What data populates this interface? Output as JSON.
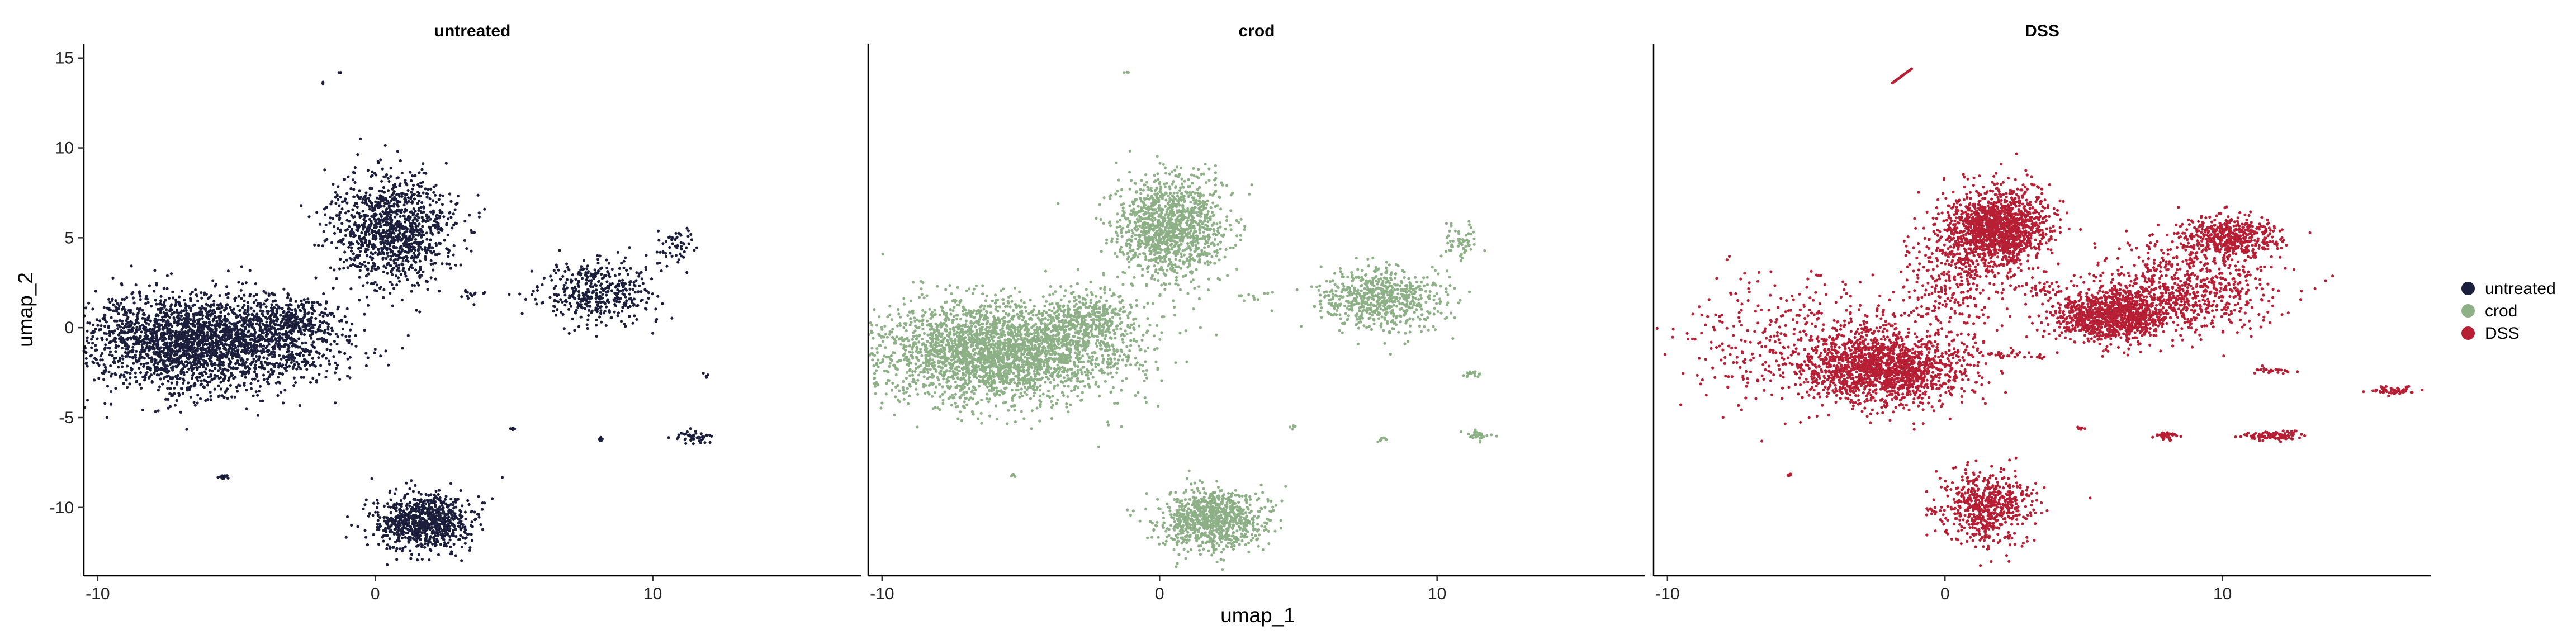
{
  "chart_data": {
    "type": "scatter",
    "xlabel": "umap_1",
    "ylabel": "umap_2",
    "xlim": [
      -10.5,
      17.5
    ],
    "ylim": [
      -13.8,
      15.8
    ],
    "x_ticks": [
      -10,
      0,
      10
    ],
    "y_ticks": [
      -10,
      -5,
      0,
      5,
      10,
      15
    ],
    "legend_position": "right",
    "grid": false,
    "legend": [
      {
        "name": "untreated",
        "color": "#1b1f3b"
      },
      {
        "name": "crod",
        "color": "#8db087"
      },
      {
        "name": "DSS",
        "color": "#b71f35"
      }
    ],
    "panels": [
      {
        "title": "untreated",
        "color": "#1b1f3b",
        "clusters": [
          {
            "cx": -6.2,
            "cy": -0.8,
            "sx": 2.2,
            "sy": 1.35,
            "n": 2600
          },
          {
            "cx": -3.0,
            "cy": 0.3,
            "sx": 0.9,
            "sy": 0.7,
            "n": 250
          },
          {
            "cx": 0.6,
            "cy": 5.5,
            "sx": 1.1,
            "sy": 1.5,
            "n": 1100
          },
          {
            "cx": 8.0,
            "cy": 2.0,
            "sx": 1.1,
            "sy": 0.9,
            "n": 420
          },
          {
            "cx": 10.8,
            "cy": 4.6,
            "sx": 0.35,
            "sy": 0.5,
            "n": 50
          },
          {
            "cx": 1.8,
            "cy": -10.8,
            "sx": 0.85,
            "sy": 0.8,
            "n": 800
          },
          {
            "cx": -5.5,
            "cy": -8.3,
            "sx": 0.08,
            "sy": 0.05,
            "n": 14
          },
          {
            "cx": 11.5,
            "cy": -6.1,
            "sx": 0.3,
            "sy": 0.15,
            "n": 45
          },
          {
            "cx": 8.1,
            "cy": -6.2,
            "sx": 0.08,
            "sy": 0.08,
            "n": 9
          },
          {
            "cx": 5.0,
            "cy": -5.6,
            "sx": 0.08,
            "sy": 0.05,
            "n": 6
          },
          {
            "cx": 3.4,
            "cy": 1.8,
            "sx": 0.3,
            "sy": 0.15,
            "n": 12
          },
          {
            "cx": -2.5,
            "cy": -1.9,
            "sx": 0.25,
            "sy": 0.1,
            "n": 10
          },
          {
            "cx": 11.9,
            "cy": -2.7,
            "sx": 0.05,
            "sy": 0.08,
            "n": 4
          },
          {
            "cx": -1.3,
            "cy": 14.2,
            "sx": 0.05,
            "sy": 0.05,
            "n": 3
          },
          {
            "cx": -1.9,
            "cy": 13.6,
            "sx": 0.05,
            "sy": 0.05,
            "n": 2
          }
        ]
      },
      {
        "title": "crod",
        "color": "#8db087",
        "clusters": [
          {
            "cx": -5.8,
            "cy": -1.3,
            "sx": 2.3,
            "sy": 1.4,
            "n": 2900
          },
          {
            "cx": -2.5,
            "cy": 0.5,
            "sx": 0.9,
            "sy": 0.7,
            "n": 280
          },
          {
            "cx": 0.4,
            "cy": 5.6,
            "sx": 1.0,
            "sy": 1.4,
            "n": 1200
          },
          {
            "cx": 8.0,
            "cy": 1.6,
            "sx": 1.1,
            "sy": 0.9,
            "n": 650
          },
          {
            "cx": 10.8,
            "cy": 4.7,
            "sx": 0.35,
            "sy": 0.5,
            "n": 60
          },
          {
            "cx": 1.9,
            "cy": -10.7,
            "sx": 0.9,
            "sy": 0.85,
            "n": 900
          },
          {
            "cx": 11.5,
            "cy": -6.0,
            "sx": 0.25,
            "sy": 0.12,
            "n": 35
          },
          {
            "cx": 11.2,
            "cy": -2.6,
            "sx": 0.2,
            "sy": 0.1,
            "n": 15
          },
          {
            "cx": 8.0,
            "cy": -6.2,
            "sx": 0.08,
            "sy": 0.08,
            "n": 8
          },
          {
            "cx": 3.5,
            "cy": 1.8,
            "sx": 0.3,
            "sy": 0.15,
            "n": 12
          },
          {
            "cx": -2.0,
            "cy": -1.8,
            "sx": 0.2,
            "sy": 0.1,
            "n": 8
          },
          {
            "cx": 4.8,
            "cy": -5.5,
            "sx": 0.08,
            "sy": 0.05,
            "n": 5
          },
          {
            "cx": -5.3,
            "cy": -8.2,
            "sx": 0.06,
            "sy": 0.05,
            "n": 4
          },
          {
            "cx": -1.2,
            "cy": 14.2,
            "sx": 0.05,
            "sy": 0.05,
            "n": 3
          }
        ]
      },
      {
        "title": "DSS",
        "color": "#b71f35",
        "clusters": [
          {
            "cx": -2.2,
            "cy": -2.3,
            "sx": 1.4,
            "sy": 1.0,
            "n": 1500
          },
          {
            "cx": -4.5,
            "cy": -1.0,
            "sx": 2.4,
            "sy": 1.8,
            "n": 500
          },
          {
            "cx": 1.9,
            "cy": 5.6,
            "sx": 0.9,
            "sy": 1.0,
            "n": 1400
          },
          {
            "cx": 0.5,
            "cy": 3.0,
            "sx": 1.0,
            "sy": 1.6,
            "n": 350
          },
          {
            "cx": 6.0,
            "cy": 0.7,
            "sx": 1.0,
            "sy": 0.7,
            "n": 1100
          },
          {
            "cx": 8.7,
            "cy": 2.2,
            "sx": 1.5,
            "sy": 1.3,
            "n": 700
          },
          {
            "cx": 10.3,
            "cy": 5.0,
            "sx": 0.8,
            "sy": 0.6,
            "n": 500
          },
          {
            "cx": 1.5,
            "cy": -10.0,
            "sx": 0.8,
            "sy": 1.0,
            "n": 600
          },
          {
            "cx": 11.9,
            "cy": -6.0,
            "sx": 0.5,
            "sy": 0.12,
            "n": 110
          },
          {
            "cx": 8.0,
            "cy": -6.0,
            "sx": 0.2,
            "sy": 0.12,
            "n": 45
          },
          {
            "cx": 16.2,
            "cy": -3.5,
            "sx": 0.4,
            "sy": 0.1,
            "n": 60
          },
          {
            "cx": 11.8,
            "cy": -2.4,
            "sx": 0.3,
            "sy": 0.1,
            "n": 25
          },
          {
            "cx": 2.2,
            "cy": -1.5,
            "sx": 0.9,
            "sy": 0.1,
            "n": 40
          },
          {
            "cx": 4.9,
            "cy": -5.6,
            "sx": 0.1,
            "sy": 0.05,
            "n": 8
          },
          {
            "cx": -5.6,
            "cy": -8.2,
            "sx": 0.06,
            "sy": 0.05,
            "n": 5
          },
          {
            "cx": -0.5,
            "cy": -10.2,
            "sx": 0.1,
            "sy": 0.1,
            "n": 10
          },
          {
            "cx": 3.5,
            "cy": 2.2,
            "sx": 0.4,
            "sy": 0.3,
            "n": 40
          }
        ],
        "segments": [
          {
            "x1": -1.9,
            "y1": 13.6,
            "x2": -1.2,
            "y2": 14.4
          }
        ]
      }
    ]
  }
}
